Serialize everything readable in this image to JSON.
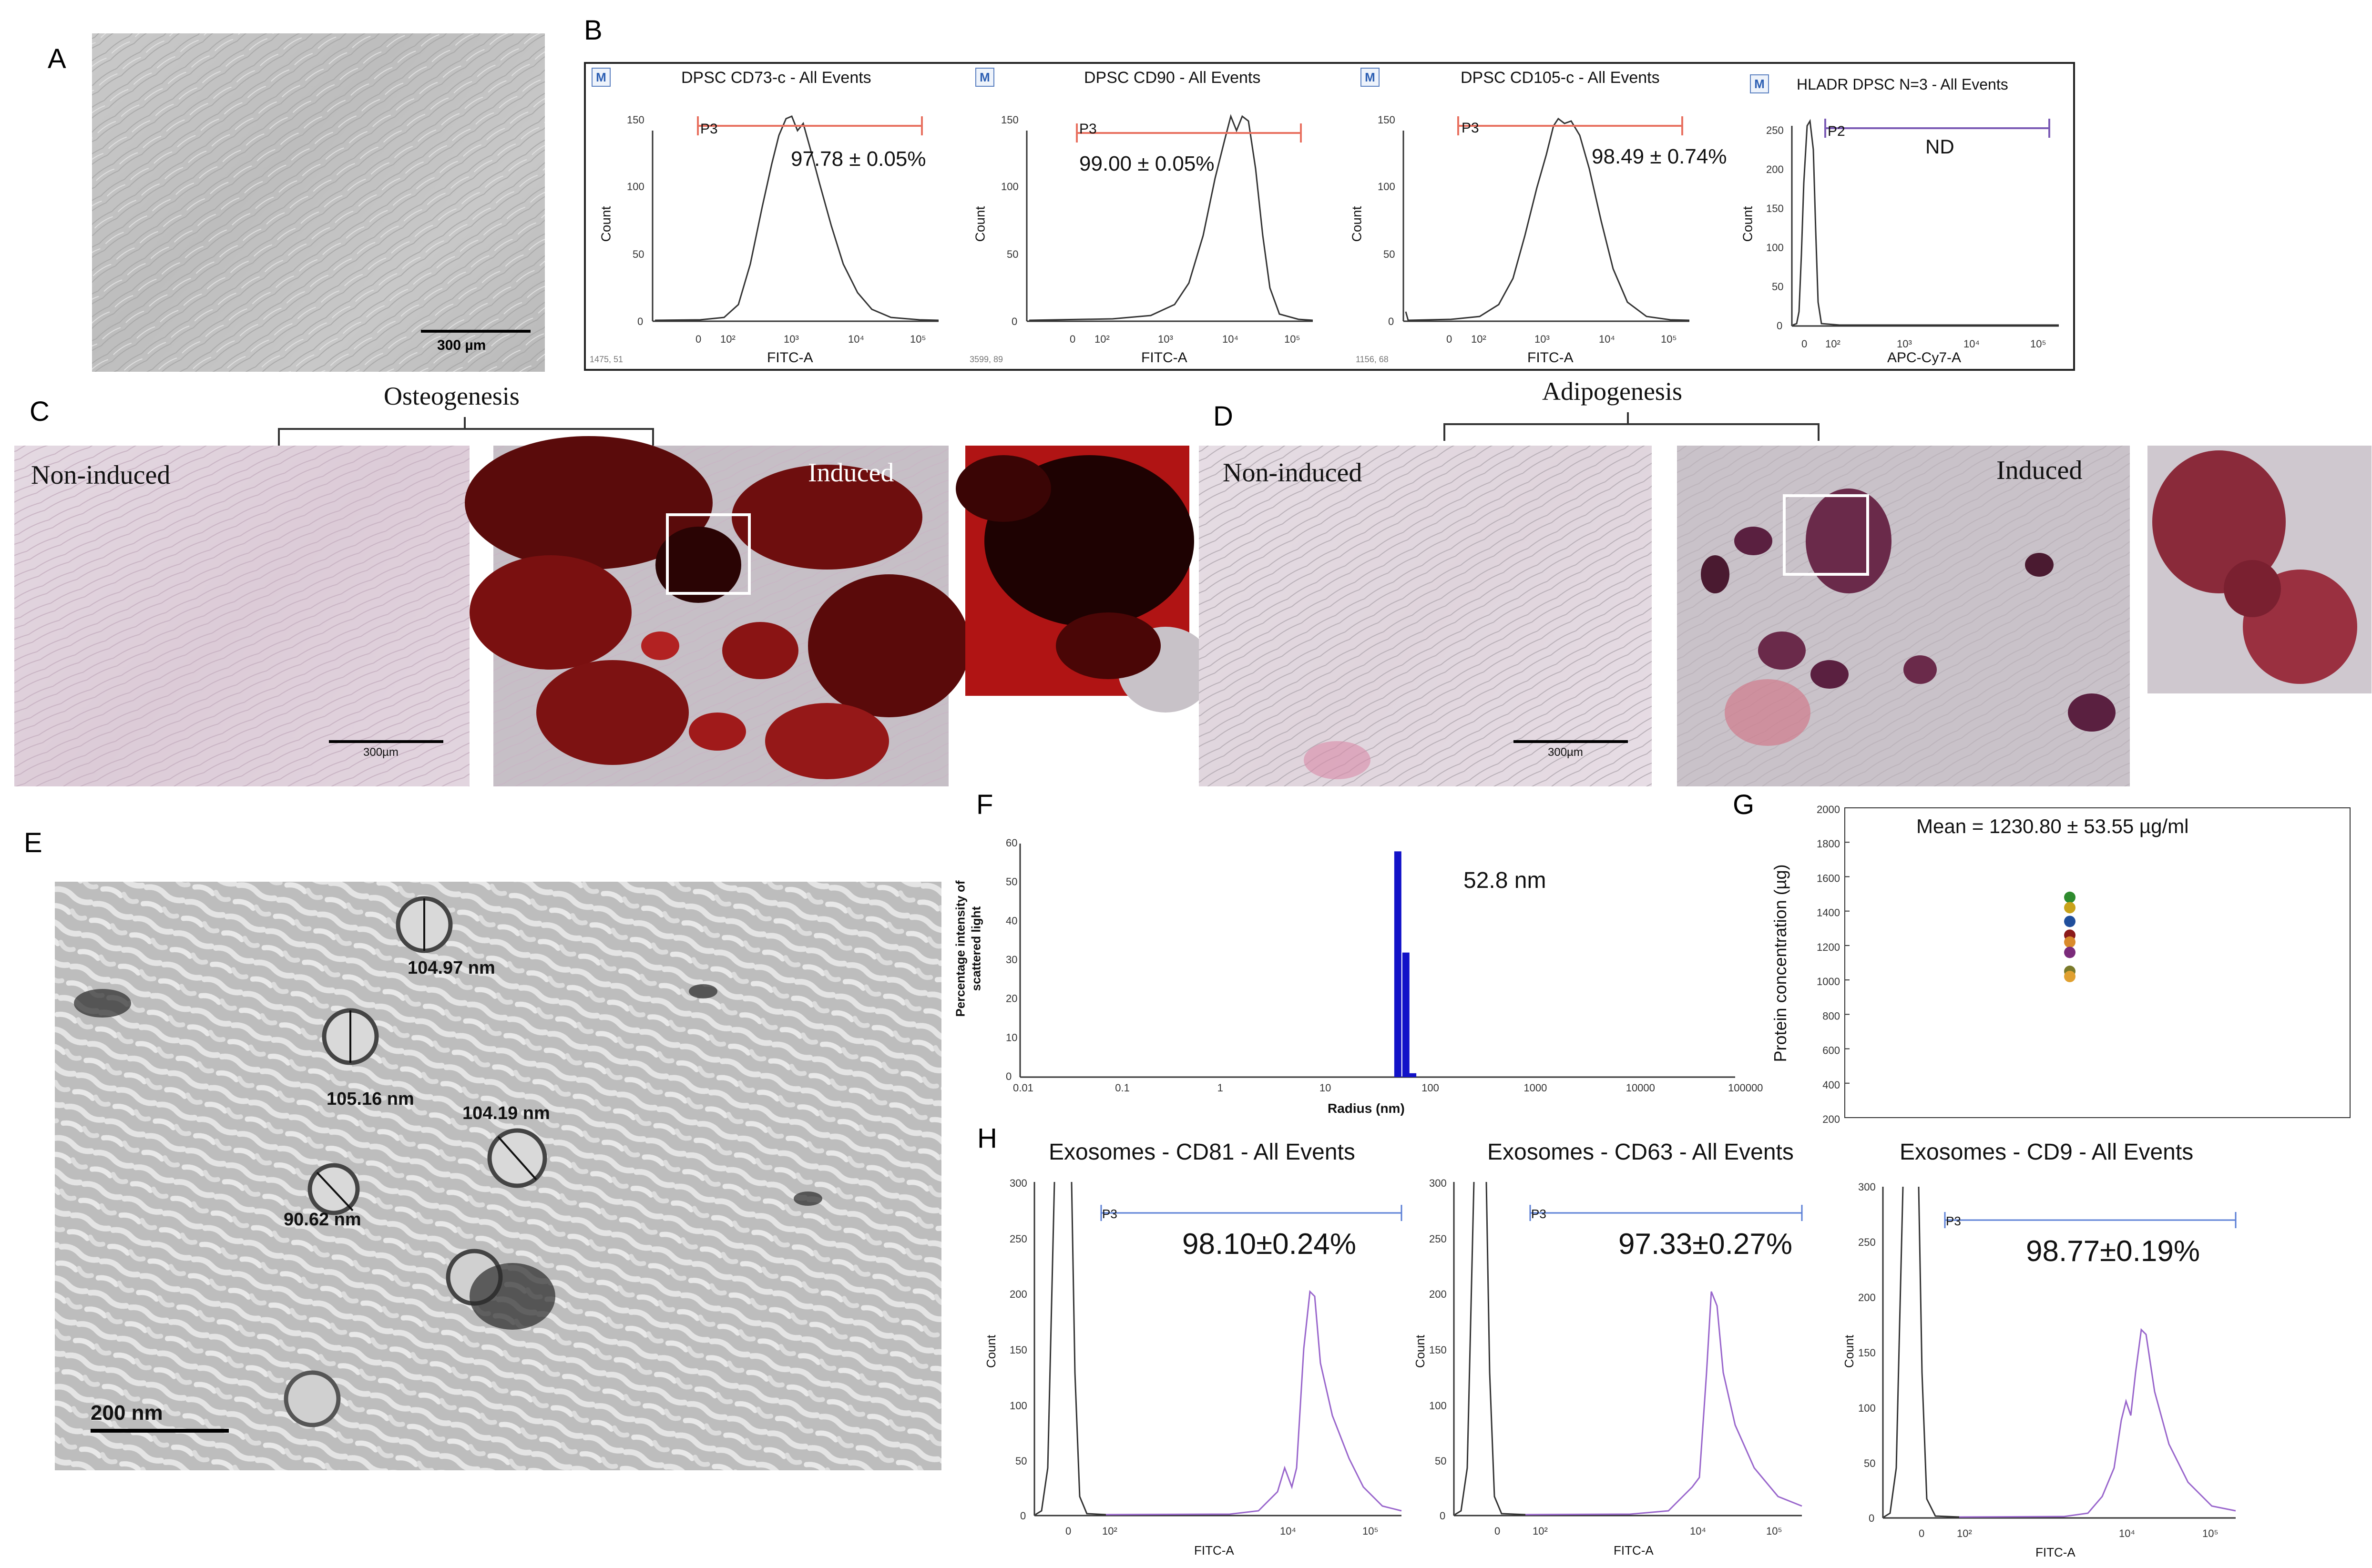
{
  "panels": {
    "A": {
      "letter": "A",
      "scale_bar": "300 µm"
    },
    "B": {
      "letter": "B",
      "plots": [
        {
          "title": "DPSC CD73-c - All Events",
          "gate": "P3",
          "value": "97.78 ± 0.05%",
          "xlabel": "FITC-A",
          "ylabel": "Count",
          "yticks": [
            "0",
            "50",
            "100",
            "150"
          ],
          "xticks": [
            "0",
            "10²",
            "10³",
            "10⁴",
            "10⁵"
          ],
          "footer": "1475, 51"
        },
        {
          "title": "DPSC CD90 - All Events",
          "gate": "P3",
          "value": "99.00 ± 0.05%",
          "xlabel": "FITC-A",
          "ylabel": "Count",
          "yticks": [
            "0",
            "50",
            "100",
            "150"
          ],
          "xticks": [
            "0",
            "10²",
            "10³",
            "10⁴",
            "10⁵"
          ],
          "footer": "3599, 89"
        },
        {
          "title": "DPSC CD105-c - All Events",
          "gate": "P3",
          "value": "98.49 ± 0.74%",
          "xlabel": "FITC-A",
          "ylabel": "Count",
          "yticks": [
            "0",
            "50",
            "100",
            "150"
          ],
          "xticks": [
            "0",
            "10²",
            "10³",
            "10⁴",
            "10⁵"
          ],
          "footer": "1156, 68"
        },
        {
          "title": "HLADR DPSC N=3 - All Events",
          "gate": "P2",
          "value": "ND",
          "xlabel": "APC-Cy7-A",
          "ylabel": "Count",
          "yticks": [
            "0",
            "50",
            "100",
            "150",
            "200",
            "250"
          ],
          "xticks": [
            "0",
            "10²",
            "10³",
            "10⁴",
            "10⁵"
          ],
          "footer": ""
        }
      ]
    },
    "C": {
      "letter": "C",
      "title": "Osteogenesis",
      "non_induced": "Non-induced",
      "induced": "Induced",
      "scale_bar": "300µm"
    },
    "D": {
      "letter": "D",
      "title": "Adipogenesis",
      "non_induced": "Non-induced",
      "induced": "Induced",
      "scale_bar": "300µm"
    },
    "E": {
      "letter": "E",
      "scale_bar": "200 nm",
      "measurements": [
        "104.97 nm",
        "105.16 nm",
        "104.19 nm",
        "90.62 nm"
      ]
    },
    "F": {
      "letter": "F",
      "ylabel_line1": "Percentage intensity of",
      "ylabel_line2": "scattered light",
      "xlabel": "Radius (nm)",
      "annotation": "52.8 nm",
      "yticks": [
        "0",
        "10",
        "20",
        "30",
        "40",
        "50",
        "60"
      ],
      "xticks": [
        "0.01",
        "0.1",
        "1",
        "10",
        "100",
        "1000",
        "10000",
        "100000"
      ]
    },
    "G": {
      "letter": "G",
      "annotation": "Mean = 1230.80 ± 53.55 µg/ml",
      "ylabel": "Protein concentration (µg)",
      "yticks": [
        "200",
        "400",
        "600",
        "800",
        "1000",
        "1200",
        "1400",
        "1600",
        "1800",
        "2000"
      ]
    },
    "H": {
      "letter": "H",
      "plots": [
        {
          "title": "Exosomes - CD81 - All Events",
          "gate": "P3",
          "value": "98.10±0.24%",
          "xlabel": "FITC-A",
          "ylabel": "Count",
          "yticks": [
            "0",
            "50",
            "100",
            "150",
            "200",
            "250",
            "300"
          ],
          "xticks": [
            "0",
            "10²",
            "10⁴",
            "10⁵"
          ]
        },
        {
          "title": "Exosomes - CD63 - All Events",
          "gate": "P3",
          "value": "97.33±0.27%",
          "xlabel": "FITC-A",
          "ylabel": "Count",
          "yticks": [
            "0",
            "50",
            "100",
            "150",
            "200",
            "250",
            "300"
          ],
          "xticks": [
            "0",
            "10²",
            "10⁴",
            "10⁵"
          ]
        },
        {
          "title": "Exosomes - CD9 - All Events",
          "gate": "P3",
          "value": "98.77±0.19%",
          "xlabel": "FITC-A",
          "ylabel": "Count",
          "yticks": [
            "0",
            "50",
            "100",
            "150",
            "200",
            "250",
            "300"
          ],
          "xticks": [
            "0",
            "10²",
            "10⁴",
            "10⁵"
          ]
        }
      ]
    },
    "B_badge": "M"
  },
  "chart_data": [
    {
      "type": "bar",
      "panel": "F",
      "xlabel": "Radius (nm)",
      "ylabel": "Percentage intensity of scattered light",
      "x_scale": "log",
      "xlim": [
        0.01,
        100000
      ],
      "ylim": [
        0,
        60
      ],
      "x": [
        50,
        60,
        70
      ],
      "values": [
        58,
        32,
        1
      ],
      "annotation": "52.8 nm"
    },
    {
      "type": "scatter",
      "panel": "G",
      "ylabel": "Protein concentration (µg)",
      "ylim": [
        200,
        2000
      ],
      "points": [
        {
          "y": 1480,
          "color": "#2e8b2e"
        },
        {
          "y": 1420,
          "color": "#c8a21a"
        },
        {
          "y": 1340,
          "color": "#1f4e9c"
        },
        {
          "y": 1260,
          "color": "#8b1a1a"
        },
        {
          "y": 1220,
          "color": "#d98a2b"
        },
        {
          "y": 1160,
          "color": "#7a2a7a"
        },
        {
          "y": 1050,
          "color": "#7a7a2a"
        },
        {
          "y": 1020,
          "color": "#e0a030"
        }
      ],
      "annotation": "Mean = 1230.80 ± 53.55 µg/ml"
    }
  ]
}
